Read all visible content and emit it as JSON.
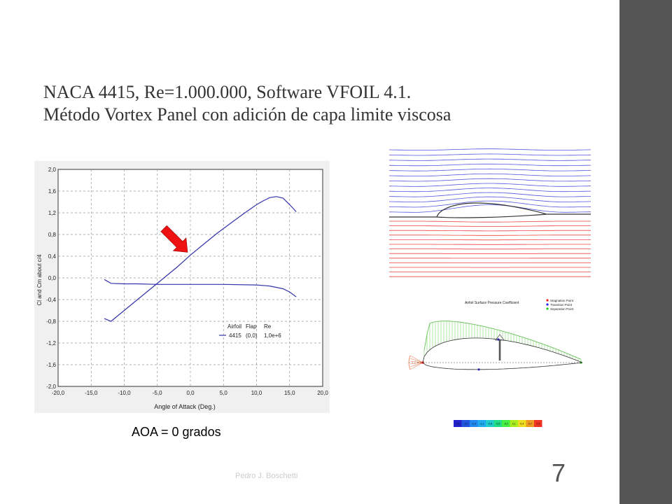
{
  "slide": {
    "title_line1": "NACA 4415, Re=1.000.000, Software VFOIL 4.1.",
    "title_line2": "Método Vortex Panel con adición de capa limite viscosa",
    "caption": "AOA = 0 grados",
    "author": "Pedro J. Boschetti",
    "page_number": "7",
    "sidebar_color": "#555555"
  },
  "chart_data": {
    "type": "line",
    "xlabel": "Angle of Attack (Deg.)",
    "ylabel": "Cl and Cm about c/4",
    "xlim": [
      -20,
      20
    ],
    "ylim": [
      -2,
      2
    ],
    "x_ticks": [
      "-20,0",
      "-15,0",
      "-10,0",
      "-5,0",
      "0,0",
      "5,0",
      "10,0",
      "15,0",
      "20,0"
    ],
    "y_ticks": [
      "2,0",
      "1,6",
      "1,2",
      "0,8",
      "0,4",
      "0,0",
      "-0,4",
      "-0,8",
      "-1,2",
      "-1,6",
      "-2,0"
    ],
    "grid": true,
    "legend": {
      "headers": [
        "Airfoil",
        "Flap",
        "Re"
      ],
      "row": [
        "4415",
        "(0,0)",
        "1,0e+6"
      ]
    },
    "series": [
      {
        "kind": "Cl",
        "color": "#3333aa",
        "x": [
          -13,
          -12,
          -10,
          -8,
          -6,
          -4,
          -2,
          0,
          2,
          4,
          6,
          8,
          10,
          11,
          12,
          13,
          14,
          15,
          16
        ],
        "y": [
          -0.75,
          -0.8,
          -0.6,
          -0.4,
          -0.2,
          0.0,
          0.2,
          0.42,
          0.62,
          0.82,
          1.0,
          1.18,
          1.35,
          1.42,
          1.48,
          1.5,
          1.47,
          1.35,
          1.22
        ]
      },
      {
        "kind": "Cm",
        "color": "#3333aa",
        "x": [
          -13,
          -12,
          -10,
          -8,
          -5,
          0,
          5,
          10,
          12,
          14,
          15,
          16
        ],
        "y": [
          -0.03,
          -0.1,
          -0.11,
          -0.11,
          -0.12,
          -0.12,
          -0.12,
          -0.13,
          -0.15,
          -0.2,
          -0.26,
          -0.35
        ]
      }
    ],
    "annotation": {
      "type": "arrow",
      "color": "#ee1111",
      "points_to": {
        "x": 0,
        "y": 0.42
      }
    }
  },
  "streamlines": {
    "upper_color": "#5555dd",
    "lower_color": "#ee4444",
    "airfoil_color": "#333333"
  },
  "pressure_plot": {
    "title": "Airfoil Surface Pressure Coefficient",
    "legend": [
      "Stagnation Point",
      "Transition Point",
      "Separation Point"
    ],
    "legend_colors": [
      "#ee2222",
      "#2222ee",
      "#22cc22"
    ],
    "scale_labels": [
      "-2,0",
      "-1,7",
      "-1,4",
      "-1,1",
      "-0,8",
      "-0,5",
      "-0,2",
      "0,1",
      "0,4",
      "0,7",
      "1,0"
    ],
    "scale_colors": [
      "#2222cc",
      "#2255dd",
      "#2288ee",
      "#22aaee",
      "#22cccc",
      "#22dd88",
      "#44ee44",
      "#aaee22",
      "#eedd22",
      "#ee9922",
      "#ee3322"
    ]
  }
}
